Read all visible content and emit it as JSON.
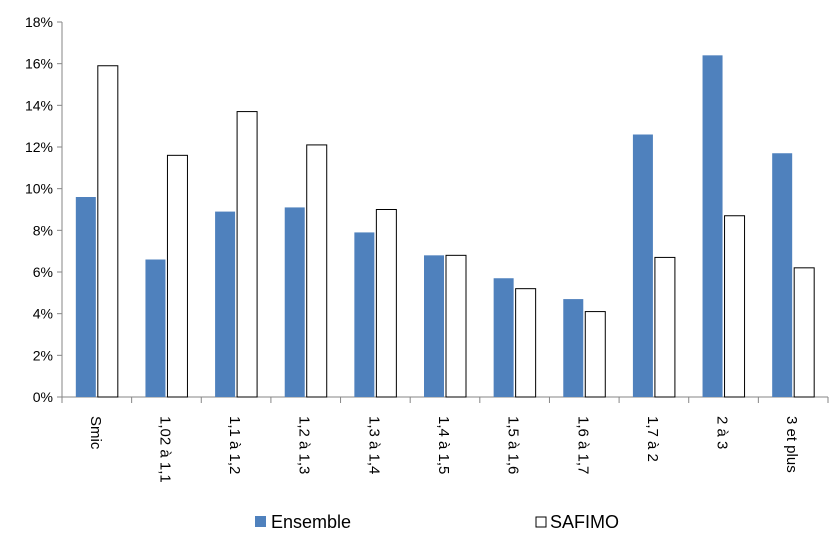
{
  "chart_data": {
    "type": "bar",
    "categories": [
      "Smic",
      "1,02 à 1,1",
      "1,1 à 1,2",
      "1,2 à 1,3",
      "1,3 à 1,4",
      "1,4 à 1,5",
      "1,5 à 1,6",
      "1,6 à 1,7",
      "1,7 à 2",
      "2  à 3",
      "3 et plus"
    ],
    "series": [
      {
        "name": "Ensemble",
        "values": [
          9.6,
          6.6,
          8.9,
          9.1,
          7.9,
          6.8,
          5.7,
          4.7,
          12.6,
          16.4,
          11.7
        ],
        "color": "#4F81BD"
      },
      {
        "name": "SAFIMO",
        "values": [
          15.9,
          11.6,
          13.7,
          12.1,
          9.0,
          6.8,
          5.2,
          4.1,
          6.7,
          8.7,
          6.2
        ],
        "color": "#FFFFFF"
      }
    ],
    "ylim": [
      0,
      18
    ],
    "yticks": [
      0,
      2,
      4,
      6,
      8,
      10,
      12,
      14,
      16,
      18
    ],
    "ytick_labels": [
      "0%",
      "2%",
      "4%",
      "6%",
      "8%",
      "10%",
      "12%",
      "14%",
      "16%",
      "18%"
    ],
    "title": "",
    "xlabel": "",
    "ylabel": "",
    "grid": false,
    "legend_position": "bottom"
  }
}
